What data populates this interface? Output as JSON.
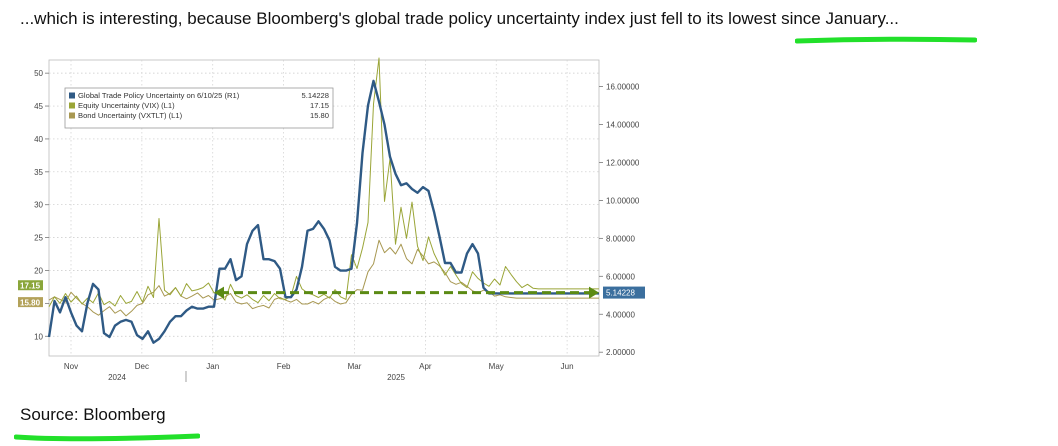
{
  "headline": {
    "text": "...which is interesting, because Bloomberg's global trade policy uncertainty index just fell to its lowest since January..."
  },
  "highlight_color": "#22e02a",
  "source": {
    "text": "Source: Bloomberg"
  },
  "chart_data": {
    "type": "line",
    "legend_position": "top-left",
    "grid": true,
    "x_ticks": [
      "Nov",
      "Dec",
      "Jan",
      "Feb",
      "Mar",
      "Apr",
      "May",
      "Jun"
    ],
    "x_years": [
      "2024",
      "2025"
    ],
    "left_axis": {
      "ylim": [
        7,
        52
      ],
      "ticks": [
        10,
        15,
        20,
        25,
        30,
        35,
        40,
        45,
        50
      ]
    },
    "right_axis": {
      "ylim": [
        1.8,
        17.4
      ],
      "ticks": [
        "2.00000",
        "4.00000",
        "6.00000",
        "8.00000",
        "10.00000",
        "12.00000",
        "14.00000",
        "16.00000"
      ]
    },
    "legend": [
      {
        "label": "Global Trade Policy Uncertainty on 6/10/25 (R1)",
        "value": "5.14228",
        "color": "#2f5a85"
      },
      {
        "label": "Equity Uncertainty (VIX) (L1)",
        "value": "17.15",
        "color": "#9aa537"
      },
      {
        "label": "Bond Uncertainty (VXTLT) (L1)",
        "value": "15.80",
        "color": "#a89852"
      }
    ],
    "end_labels": {
      "left": [
        {
          "text": "17.15",
          "y": 17.15,
          "color": "#8aa63a"
        },
        {
          "text": "15.80",
          "y": 15.8,
          "color": "#b3a25a"
        }
      ],
      "right": {
        "text": "5.14228",
        "y": 5.14228,
        "color": "#3b6f9e"
      }
    },
    "dashed_arrow": {
      "from": 0.3,
      "to": 1.0,
      "y_right": 5.14,
      "color": "#5b8a14"
    },
    "series": [
      {
        "name": "Global Trade Policy Uncertainty on 6/10/25 (R1)",
        "axis": "right",
        "color": "#2f5a85",
        "x": [
          0,
          0.01,
          0.02,
          0.03,
          0.04,
          0.05,
          0.06,
          0.07,
          0.08,
          0.09,
          0.1,
          0.11,
          0.12,
          0.13,
          0.14,
          0.15,
          0.16,
          0.17,
          0.18,
          0.19,
          0.2,
          0.21,
          0.22,
          0.23,
          0.24,
          0.25,
          0.26,
          0.27,
          0.28,
          0.29,
          0.3,
          0.31,
          0.32,
          0.33,
          0.34,
          0.35,
          0.36,
          0.37,
          0.38,
          0.39,
          0.4,
          0.41,
          0.42,
          0.43,
          0.44,
          0.45,
          0.46,
          0.47,
          0.48,
          0.49,
          0.5,
          0.51,
          0.52,
          0.53,
          0.54,
          0.55,
          0.56,
          0.57,
          0.58,
          0.59,
          0.6,
          0.61,
          0.62,
          0.63,
          0.64,
          0.65,
          0.66,
          0.67,
          0.68,
          0.69,
          0.7,
          0.71,
          0.72,
          0.73,
          0.74,
          0.75,
          0.76,
          0.77,
          0.78,
          0.79,
          0.8,
          0.81,
          0.82,
          0.83,
          0.84,
          0.85,
          0.86,
          0.87,
          0.88,
          0.89,
          0.9,
          0.91,
          0.92,
          0.93,
          0.94,
          0.95,
          0.96,
          0.97,
          0.98,
          0.99,
          1.0
        ],
        "values": [
          2.8,
          4.7,
          4.1,
          4.9,
          4.1,
          3.4,
          3.1,
          4.6,
          5.6,
          5.3,
          3.0,
          2.8,
          3.4,
          3.6,
          3.7,
          3.6,
          2.9,
          2.7,
          3.1,
          2.5,
          2.7,
          3.1,
          3.6,
          3.9,
          3.9,
          4.2,
          4.4,
          4.3,
          4.3,
          4.4,
          4.4,
          6.4,
          6.4,
          6.9,
          5.8,
          6.0,
          7.7,
          8.4,
          8.7,
          6.9,
          6.9,
          6.8,
          6.4,
          4.9,
          4.9,
          5.3,
          6.5,
          8.4,
          8.5,
          8.9,
          8.5,
          7.9,
          6.5,
          6.3,
          6.3,
          6.4,
          8.8,
          12.5,
          15.0,
          16.3,
          15.2,
          14.0,
          12.3,
          11.4,
          10.8,
          10.9,
          10.6,
          10.4,
          10.7,
          10.5,
          9.4,
          8.1,
          6.7,
          6.7,
          6.2,
          6.2,
          7.2,
          7.7,
          7.2,
          5.4,
          5.1,
          5.1,
          5.1,
          5.1,
          5.1,
          5.1,
          5.1,
          5.1,
          5.1,
          5.1,
          5.1,
          5.1,
          5.1,
          5.1,
          5.1,
          5.1,
          5.1,
          5.1,
          5.1,
          5.1,
          5.1
        ]
      },
      {
        "name": "Equity Uncertainty (VIX) (L1)",
        "axis": "left",
        "color": "#9aa537",
        "x": [
          0,
          0.01,
          0.02,
          0.03,
          0.04,
          0.05,
          0.06,
          0.07,
          0.08,
          0.09,
          0.1,
          0.11,
          0.12,
          0.13,
          0.14,
          0.15,
          0.16,
          0.17,
          0.18,
          0.19,
          0.2,
          0.21,
          0.22,
          0.23,
          0.24,
          0.25,
          0.26,
          0.27,
          0.28,
          0.29,
          0.3,
          0.31,
          0.32,
          0.33,
          0.34,
          0.35,
          0.36,
          0.37,
          0.38,
          0.39,
          0.4,
          0.41,
          0.42,
          0.43,
          0.44,
          0.45,
          0.46,
          0.47,
          0.48,
          0.49,
          0.5,
          0.51,
          0.52,
          0.53,
          0.54,
          0.55,
          0.56,
          0.57,
          0.58,
          0.59,
          0.6,
          0.61,
          0.62,
          0.63,
          0.64,
          0.65,
          0.66,
          0.67,
          0.68,
          0.69,
          0.7,
          0.71,
          0.72,
          0.73,
          0.74,
          0.75,
          0.76,
          0.77,
          0.78,
          0.79,
          0.8,
          0.81,
          0.82,
          0.83,
          0.84,
          0.85,
          0.86,
          0.87,
          0.88,
          0.89,
          0.9,
          0.91,
          0.92,
          0.93,
          0.94,
          0.95,
          0.96,
          0.97,
          0.98,
          0.99,
          1.0
        ],
        "values": [
          14.5,
          16.0,
          15.0,
          16.5,
          15.2,
          16.1,
          14.9,
          15.8,
          15.1,
          16.6,
          14.8,
          15.3,
          14.6,
          16.2,
          15.0,
          15.3,
          16.8,
          15.2,
          17.6,
          15.9,
          27.9,
          17.0,
          16.3,
          17.4,
          16.1,
          18.0,
          16.9,
          17.1,
          17.4,
          18.1,
          16.6,
          16.4,
          15.5,
          17.9,
          16.2,
          15.8,
          16.3,
          15.6,
          15.1,
          16.2,
          15.4,
          16.5,
          15.7,
          15.6,
          16.1,
          19.1,
          17.2,
          16.6,
          16.3,
          15.9,
          16.4,
          15.8,
          17.1,
          16.0,
          15.6,
          22.4,
          20.3,
          23.4,
          27.3,
          45.3,
          52.3,
          30.5,
          37.0,
          24.0,
          29.6,
          24.9,
          30.4,
          23.7,
          21.5,
          25.1,
          22.6,
          20.9,
          19.3,
          20.6,
          19.3,
          18.0,
          17.4,
          19.8,
          18.8,
          18.1,
          17.6,
          18.7,
          17.8,
          20.6,
          19.4,
          18.3,
          17.4,
          17.9,
          17.3,
          17.2,
          17.2,
          17.2,
          17.2,
          17.2,
          17.2,
          17.2,
          17.2,
          17.2,
          17.2,
          17.2,
          17.2
        ]
      },
      {
        "name": "Bond Uncertainty (VXTLT) (L1)",
        "axis": "left",
        "color": "#a89852",
        "x": [
          0,
          0.01,
          0.02,
          0.03,
          0.04,
          0.05,
          0.06,
          0.07,
          0.08,
          0.09,
          0.1,
          0.11,
          0.12,
          0.13,
          0.14,
          0.15,
          0.16,
          0.17,
          0.18,
          0.19,
          0.2,
          0.21,
          0.22,
          0.23,
          0.24,
          0.25,
          0.26,
          0.27,
          0.28,
          0.29,
          0.3,
          0.31,
          0.32,
          0.33,
          0.34,
          0.35,
          0.36,
          0.37,
          0.38,
          0.39,
          0.4,
          0.41,
          0.42,
          0.43,
          0.44,
          0.45,
          0.46,
          0.47,
          0.48,
          0.49,
          0.5,
          0.51,
          0.52,
          0.53,
          0.54,
          0.55,
          0.56,
          0.57,
          0.58,
          0.59,
          0.6,
          0.61,
          0.62,
          0.63,
          0.64,
          0.65,
          0.66,
          0.67,
          0.68,
          0.69,
          0.7,
          0.71,
          0.72,
          0.73,
          0.74,
          0.75,
          0.76,
          0.77,
          0.78,
          0.79,
          0.8,
          0.81,
          0.82,
          0.83,
          0.84,
          0.85,
          0.86,
          0.87,
          0.88,
          0.89,
          0.9,
          0.91,
          0.92,
          0.93,
          0.94,
          0.95,
          0.96,
          0.97,
          0.98,
          0.99,
          1.0
        ],
        "values": [
          15.5,
          16.0,
          15.6,
          15.2,
          16.7,
          15.8,
          15.0,
          14.5,
          13.7,
          13.2,
          13.9,
          14.5,
          13.5,
          14.0,
          13.1,
          13.8,
          14.7,
          15.0,
          16.3,
          16.7,
          17.7,
          16.1,
          16.5,
          17.4,
          16.1,
          15.7,
          16.1,
          16.6,
          15.8,
          16.2,
          15.5,
          15.7,
          16.0,
          16.5,
          15.2,
          14.9,
          15.1,
          14.2,
          14.5,
          14.7,
          14.3,
          15.6,
          15.9,
          15.5,
          15.2,
          15.6,
          14.9,
          14.9,
          15.3,
          14.9,
          15.6,
          16.0,
          15.3,
          14.9,
          15.1,
          16.4,
          17.1,
          17.0,
          19.8,
          21.0,
          24.6,
          22.7,
          23.5,
          22.5,
          24.0,
          21.8,
          21.0,
          23.2,
          22.2,
          21.0,
          21.3,
          20.7,
          19.7,
          18.3,
          17.9,
          18.2,
          17.6,
          16.9,
          16.6,
          17.0,
          16.8,
          16.1,
          16.3,
          16.0,
          15.9,
          15.8,
          15.8,
          15.8,
          15.8,
          15.8,
          15.8,
          15.8,
          15.8,
          15.8,
          15.8,
          15.8,
          15.8,
          15.8,
          15.8,
          15.8,
          15.8
        ]
      }
    ]
  }
}
